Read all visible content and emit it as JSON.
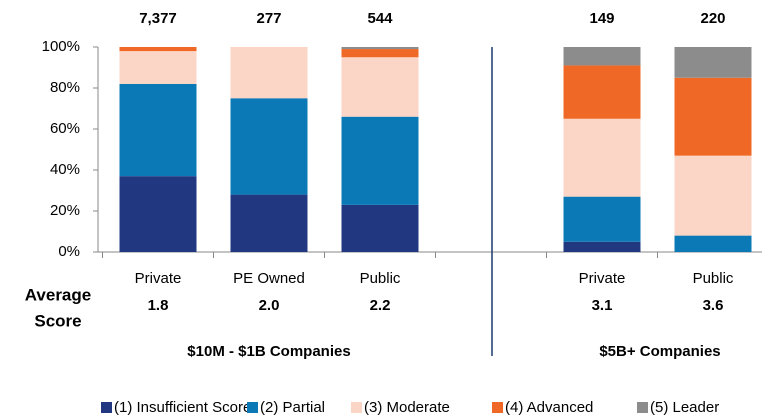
{
  "chart_data": {
    "type": "stacked_bar",
    "categories": [
      "Private",
      "PE Owned",
      "Public",
      null,
      "Private",
      "Public"
    ],
    "count_labels": [
      "7,377",
      "277",
      "544",
      null,
      "149",
      "220"
    ],
    "score_label": [
      "Average",
      "Score"
    ],
    "average_scores": [
      "1.8",
      "2.0",
      "2.2",
      null,
      "3.1",
      "3.6"
    ],
    "groups": [
      "$10M - $1B Companies",
      "$5B+ Companies"
    ],
    "series": [
      {
        "name": "(1) Insufficient Score",
        "color": "#213780",
        "values": [
          37,
          28,
          23,
          null,
          5,
          0
        ]
      },
      {
        "name": "(2) Partial",
        "color": "#0a79b5",
        "values": [
          45,
          47,
          43,
          null,
          22,
          8
        ]
      },
      {
        "name": "(3) Moderate",
        "color": "#fbd5c5",
        "values": [
          16,
          25,
          29,
          null,
          38,
          39
        ]
      },
      {
        "name": "(4) Advanced",
        "color": "#f06825",
        "values": [
          2,
          0,
          4,
          null,
          26,
          38
        ]
      },
      {
        "name": "(5) Leader",
        "color": "#8c8c8c",
        "values": [
          0,
          0,
          1,
          null,
          9,
          15
        ]
      }
    ],
    "ylim": [
      0,
      100
    ],
    "yticks": [
      {
        "value": 0,
        "label": "0%"
      },
      {
        "value": 20,
        "label": "20%"
      },
      {
        "value": 40,
        "label": "40%"
      },
      {
        "value": 60,
        "label": "60%"
      },
      {
        "value": 80,
        "label": "80%"
      },
      {
        "value": 100,
        "label": "100%"
      }
    ]
  }
}
